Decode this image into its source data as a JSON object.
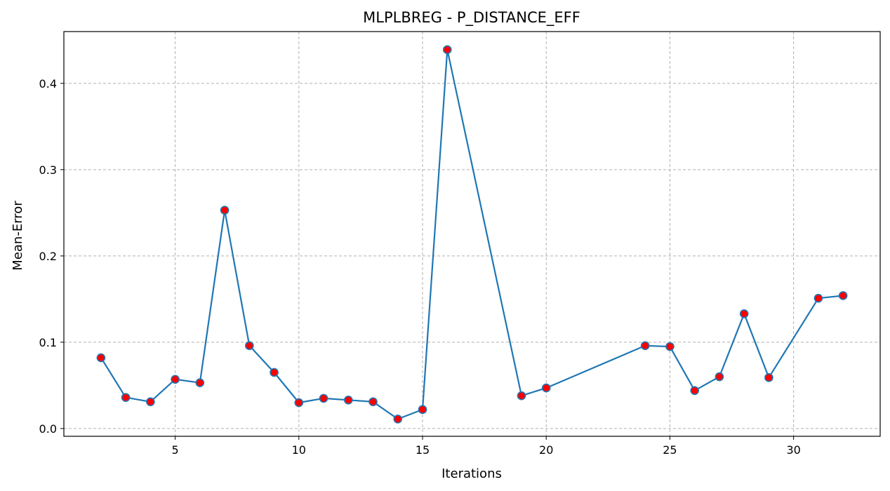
{
  "chart_data": {
    "type": "line",
    "title": "MLPLBREG - P_DISTANCE_EFF",
    "xlabel": "Iterations",
    "ylabel": "Mean-Error",
    "xlim": [
      0.5,
      33.5
    ],
    "ylim": [
      -0.009,
      0.46
    ],
    "xticks": [
      5,
      10,
      15,
      20,
      25,
      30
    ],
    "yticks": [
      0.0,
      0.1,
      0.2,
      0.3,
      0.4
    ],
    "ytick_labels": [
      "0.0",
      "0.1",
      "0.2",
      "0.3",
      "0.4"
    ],
    "grid": true,
    "line_color": "#1f77b4",
    "marker_color": "#ff0000",
    "series": [
      {
        "x": [
          2,
          3,
          4,
          5,
          6,
          7,
          8,
          9,
          10,
          11,
          12,
          13,
          14,
          15,
          16,
          19,
          20,
          24,
          25,
          26,
          27,
          28,
          29,
          31,
          32
        ],
        "values": [
          0.082,
          0.036,
          0.031,
          0.057,
          0.053,
          0.253,
          0.096,
          0.065,
          0.03,
          0.035,
          0.033,
          0.031,
          0.011,
          0.022,
          0.439,
          0.038,
          0.047,
          0.096,
          0.095,
          0.044,
          0.06,
          0.133,
          0.059,
          0.151,
          0.154
        ]
      }
    ]
  }
}
